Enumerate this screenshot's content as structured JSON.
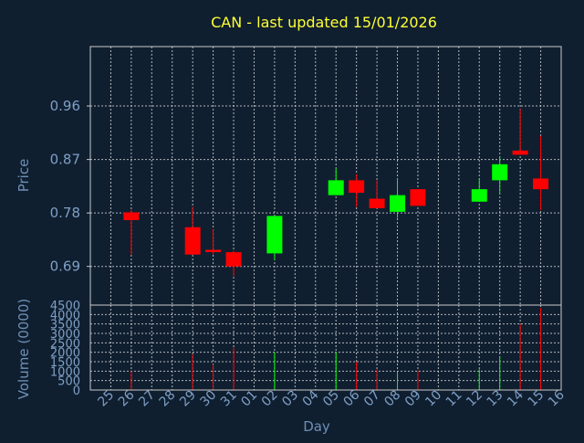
{
  "chart_data": {
    "type": "candlestick",
    "title": "CAN - last updated 15/01/2026",
    "price_axis": {
      "label": "Price",
      "ylim": [
        0.625,
        1.06
      ],
      "ticks": [
        0.69,
        0.78,
        0.87,
        0.96
      ]
    },
    "volume_axis": {
      "label": "Volume (0000)",
      "ylim": [
        0,
        4500
      ],
      "ticks": [
        0,
        500,
        1000,
        1500,
        2000,
        2500,
        3000,
        3500,
        4000,
        4500
      ]
    },
    "xlabel": "Day",
    "x_ticks": [
      "25",
      "26",
      "27",
      "28",
      "29",
      "30",
      "31",
      "01",
      "02",
      "03",
      "04",
      "05",
      "06",
      "07",
      "08",
      "09",
      "10",
      "11",
      "12",
      "13",
      "14",
      "15",
      "16"
    ],
    "colors": {
      "up": "#00ff00",
      "down": "#ff0000",
      "background": "#0f1f30",
      "title": "#ffff33",
      "axis_text": "#7f9fc5"
    },
    "grid": true,
    "candles": [
      {
        "day": "26",
        "open": 0.781,
        "high": 0.785,
        "low": 0.71,
        "close": 0.768,
        "volume": 1000
      },
      {
        "day": "29",
        "open": 0.756,
        "high": 0.79,
        "low": 0.71,
        "close": 0.71,
        "volume": 1900
      },
      {
        "day": "30",
        "open": 0.718,
        "high": 0.753,
        "low": 0.71,
        "close": 0.716,
        "volume": 1350
      },
      {
        "day": "31",
        "open": 0.714,
        "high": 0.717,
        "low": 0.674,
        "close": 0.69,
        "volume": 2250
      },
      {
        "day": "02",
        "open": 0.712,
        "high": 0.775,
        "low": 0.701,
        "close": 0.775,
        "volume": 2000
      },
      {
        "day": "05",
        "open": 0.81,
        "high": 0.855,
        "low": 0.81,
        "close": 0.835,
        "volume": 2000
      },
      {
        "day": "06",
        "open": 0.835,
        "high": 0.845,
        "low": 0.79,
        "close": 0.814,
        "volume": 1500
      },
      {
        "day": "07",
        "open": 0.804,
        "high": 0.835,
        "low": 0.788,
        "close": 0.788,
        "volume": 1100
      },
      {
        "day": "08",
        "open": 0.782,
        "high": 0.838,
        "low": 0.772,
        "close": 0.81,
        "volume": 1000
      },
      {
        "day": "09",
        "open": 0.82,
        "high": 0.82,
        "low": 0.792,
        "close": 0.792,
        "volume": 1050
      },
      {
        "day": "12",
        "open": 0.799,
        "high": 0.838,
        "low": 0.799,
        "close": 0.82,
        "volume": 1100
      },
      {
        "day": "13",
        "open": 0.835,
        "high": 0.874,
        "low": 0.812,
        "close": 0.862,
        "volume": 1800
      },
      {
        "day": "14",
        "open": 0.885,
        "high": 0.955,
        "low": 0.878,
        "close": 0.878,
        "volume": 3500
      },
      {
        "day": "15",
        "open": 0.838,
        "high": 0.91,
        "low": 0.785,
        "close": 0.82,
        "volume": 4350
      }
    ]
  }
}
